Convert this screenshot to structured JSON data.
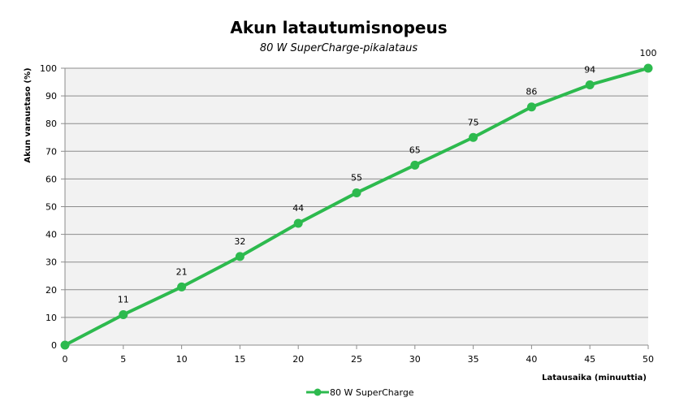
{
  "chart_data": {
    "type": "line",
    "title": "Akun latautumisnopeus",
    "subtitle": "80 W SuperCharge-pikalataus",
    "xlabel": "Latausaika  (minuuttia)",
    "ylabel": "Akun varaustaso  (%)",
    "x": [
      0,
      5,
      10,
      15,
      20,
      25,
      30,
      35,
      40,
      45,
      50
    ],
    "series": [
      {
        "name": "80 W SuperCharge",
        "values": [
          0,
          11,
          21,
          32,
          44,
          55,
          65,
          75,
          86,
          94,
          100
        ],
        "data_labels": [
          "",
          "11",
          "21",
          "32",
          "44",
          "55",
          "65",
          "75",
          "86",
          "94",
          "100"
        ],
        "color": "#2dba4e"
      }
    ],
    "xlim": [
      0,
      50
    ],
    "ylim": [
      0,
      100
    ],
    "xticks": [
      0,
      5,
      10,
      15,
      20,
      25,
      30,
      35,
      40,
      45,
      50
    ],
    "yticks": [
      0,
      10,
      20,
      30,
      40,
      50,
      60,
      70,
      80,
      90,
      100
    ],
    "grid": true,
    "plot_background": "#f2f2f2",
    "legend_position": "bottom"
  }
}
